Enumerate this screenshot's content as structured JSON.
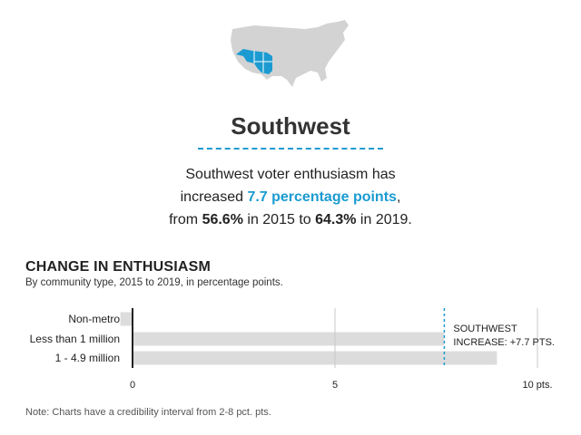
{
  "region": {
    "title": "Southwest",
    "summary_line1": "Southwest voter enthusiasm has",
    "summary_line2_prefix": "increased ",
    "summary_line2_highlight": "7.7 percentage points",
    "summary_line2_suffix": ",",
    "summary_line3_a": "from ",
    "summary_line3_b": "56.6%",
    "summary_line3_c": " in 2015 to ",
    "summary_line3_d": "64.3%",
    "summary_line3_e": " in 2019."
  },
  "colors": {
    "accent": "#1b9bd1",
    "map_base": "#d3d3d3",
    "bar": "#dcdcdc",
    "axis": "#222222"
  },
  "chart_data": {
    "type": "bar",
    "orientation": "horizontal",
    "title": "CHANGE IN ENTHUSIASM",
    "subtitle": "By community type, 2015 to 2019, in percentage points.",
    "categories": [
      "Non-metro",
      "Less than 1 million",
      "1 - 4.9 million"
    ],
    "values": [
      -0.3,
      7.7,
      9.0
    ],
    "xlim": [
      0,
      10
    ],
    "ticks": [
      {
        "value": 0,
        "label": "0"
      },
      {
        "value": 5,
        "label": "5"
      },
      {
        "value": 10,
        "label": "10 pts."
      }
    ],
    "reference": {
      "value": 7.7,
      "label_line1": "SOUTHWEST",
      "label_line2": "INCREASE: +7.7 PTS."
    },
    "grid": true
  },
  "note": "Note: Charts have a credibility interval from 2-8 pct. pts."
}
